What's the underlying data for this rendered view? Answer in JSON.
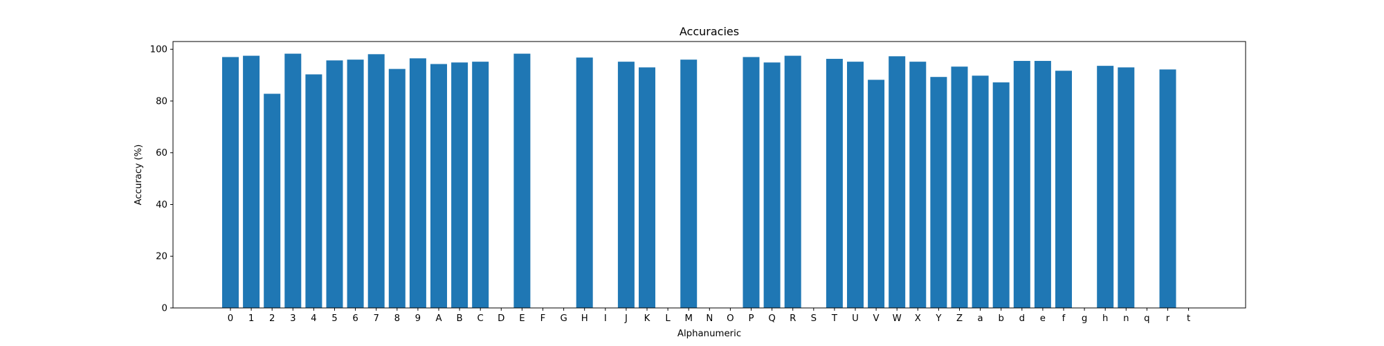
{
  "chart_data": {
    "type": "bar",
    "title": "Accuracies",
    "xlabel": "Alphanumeric",
    "ylabel": "Accuracy (%)",
    "ylim": [
      0,
      103
    ],
    "yticks": [
      0,
      20,
      40,
      60,
      80,
      100
    ],
    "grid": false,
    "bar_color": "#1f77b4",
    "categories": [
      "0",
      "1",
      "2",
      "3",
      "4",
      "5",
      "6",
      "7",
      "8",
      "9",
      "A",
      "B",
      "C",
      "D",
      "E",
      "F",
      "G",
      "H",
      "I",
      "J",
      "K",
      "L",
      "M",
      "N",
      "O",
      "P",
      "Q",
      "R",
      "S",
      "T",
      "U",
      "V",
      "W",
      "X",
      "Y",
      "Z",
      "a",
      "b",
      "d",
      "e",
      "f",
      "g",
      "h",
      "n",
      "q",
      "r",
      "t"
    ],
    "values": [
      97.0,
      97.5,
      82.8,
      98.3,
      90.3,
      95.7,
      96.0,
      98.1,
      92.4,
      96.5,
      94.3,
      94.9,
      95.2,
      0,
      98.3,
      0,
      0,
      96.8,
      0,
      95.2,
      93.0,
      0,
      96.0,
      0,
      0,
      97.0,
      94.9,
      97.5,
      0,
      96.3,
      95.2,
      88.2,
      97.3,
      95.2,
      89.3,
      93.3,
      89.8,
      87.2,
      95.5,
      95.5,
      91.7,
      0,
      93.6,
      93.0,
      0,
      92.2,
      0
    ]
  }
}
